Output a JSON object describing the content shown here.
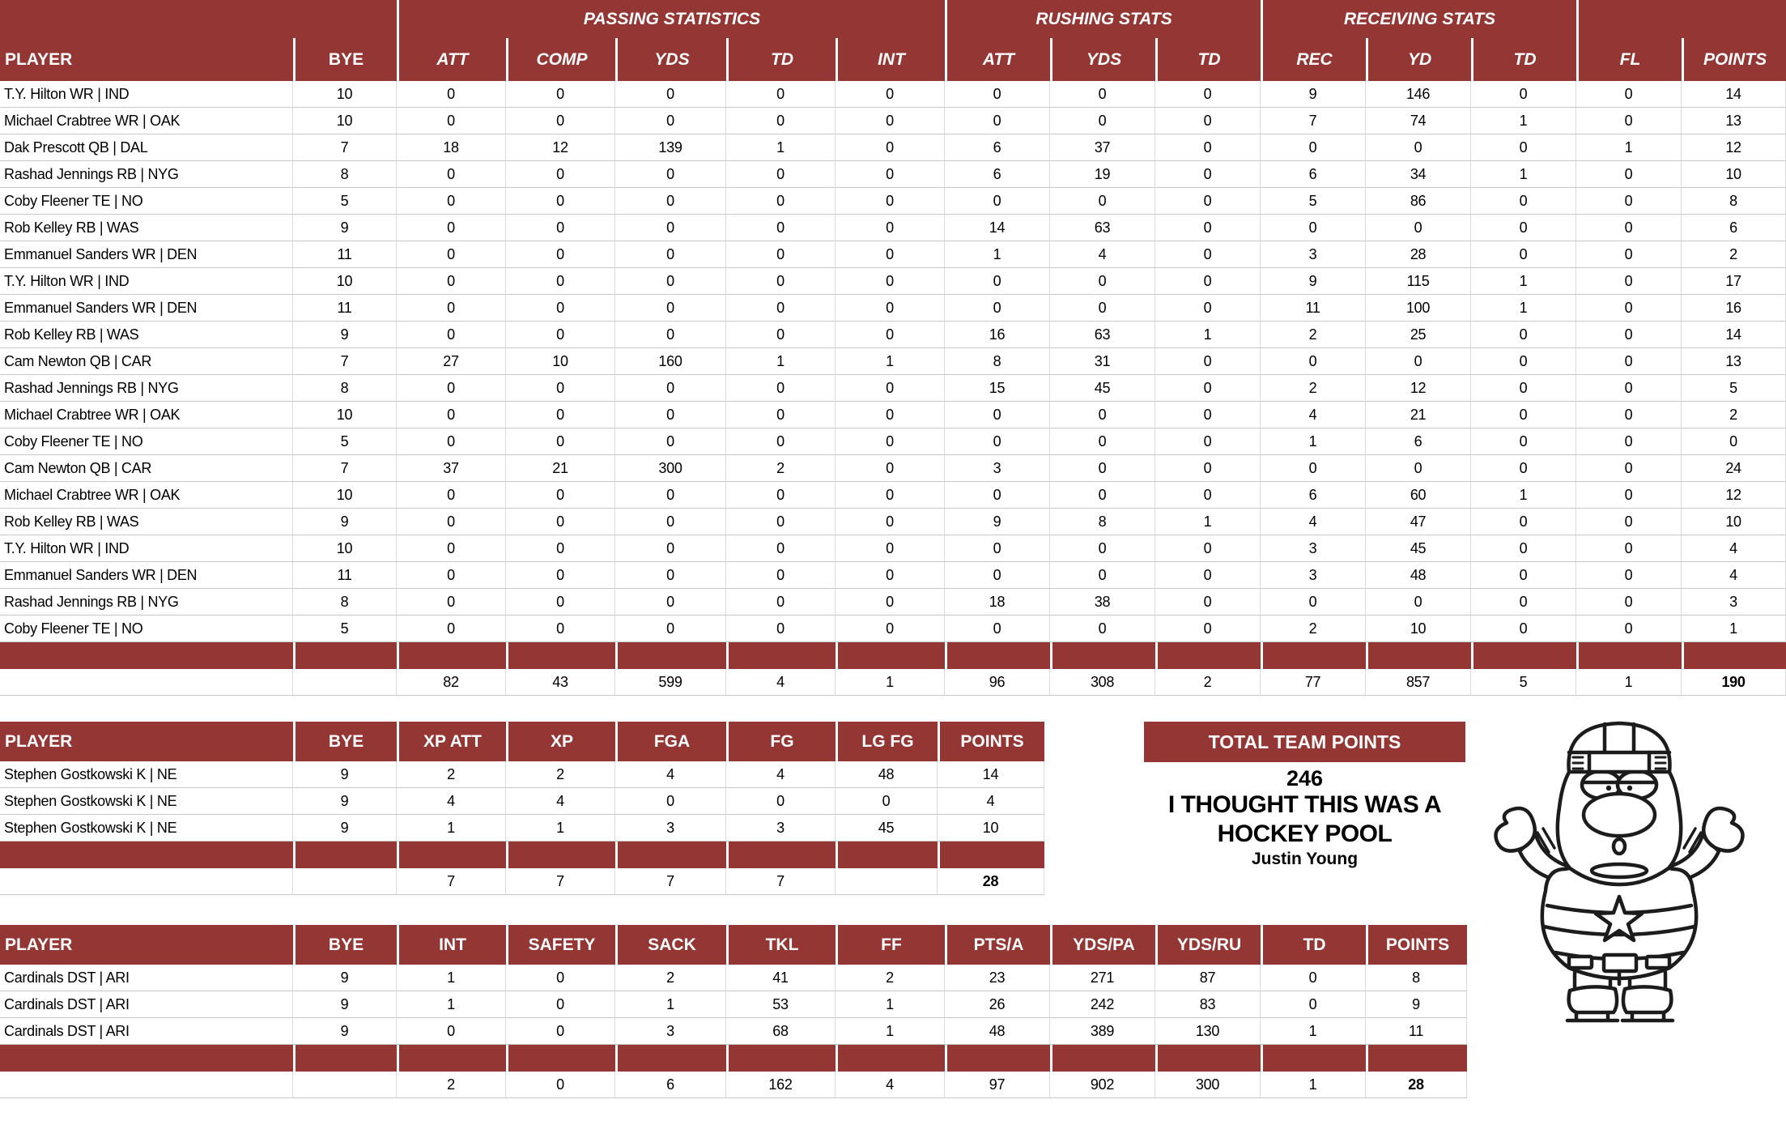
{
  "colors": {
    "maroon": "#943634",
    "grid_vertical": "#dadada",
    "grid_horizontal": "#c6c6c6",
    "header_text": "#ffffff",
    "body_text": "#000000"
  },
  "main": {
    "groups": [
      "PASSING STATISTICS",
      "RUSHING STATS",
      "RECEIVING STATS"
    ],
    "columns": [
      "PLAYER",
      "BYE",
      "ATT",
      "COMP",
      "YDS",
      "TD",
      "INT",
      "ATT",
      "YDS",
      "TD",
      "REC",
      "YD",
      "TD",
      "FL",
      "POINTS"
    ],
    "rows": [
      [
        "T.Y. Hilton WR | IND",
        "10",
        "0",
        "0",
        "0",
        "0",
        "0",
        "0",
        "0",
        "0",
        "9",
        "146",
        "0",
        "0",
        "14"
      ],
      [
        "Michael Crabtree WR | OAK",
        "10",
        "0",
        "0",
        "0",
        "0",
        "0",
        "0",
        "0",
        "0",
        "7",
        "74",
        "1",
        "0",
        "13"
      ],
      [
        "Dak Prescott QB | DAL",
        "7",
        "18",
        "12",
        "139",
        "1",
        "0",
        "6",
        "37",
        "0",
        "0",
        "0",
        "0",
        "1",
        "12"
      ],
      [
        "Rashad Jennings RB | NYG",
        "8",
        "0",
        "0",
        "0",
        "0",
        "0",
        "6",
        "19",
        "0",
        "6",
        "34",
        "1",
        "0",
        "10"
      ],
      [
        "Coby Fleener TE | NO",
        "5",
        "0",
        "0",
        "0",
        "0",
        "0",
        "0",
        "0",
        "0",
        "5",
        "86",
        "0",
        "0",
        "8"
      ],
      [
        "Rob Kelley RB | WAS",
        "9",
        "0",
        "0",
        "0",
        "0",
        "0",
        "14",
        "63",
        "0",
        "0",
        "0",
        "0",
        "0",
        "6"
      ],
      [
        "Emmanuel Sanders WR | DEN",
        "11",
        "0",
        "0",
        "0",
        "0",
        "0",
        "1",
        "4",
        "0",
        "3",
        "28",
        "0",
        "0",
        "2"
      ],
      [
        "T.Y. Hilton WR | IND",
        "10",
        "0",
        "0",
        "0",
        "0",
        "0",
        "0",
        "0",
        "0",
        "9",
        "115",
        "1",
        "0",
        "17"
      ],
      [
        "Emmanuel Sanders WR | DEN",
        "11",
        "0",
        "0",
        "0",
        "0",
        "0",
        "0",
        "0",
        "0",
        "11",
        "100",
        "1",
        "0",
        "16"
      ],
      [
        "Rob Kelley RB | WAS",
        "9",
        "0",
        "0",
        "0",
        "0",
        "0",
        "16",
        "63",
        "1",
        "2",
        "25",
        "0",
        "0",
        "14"
      ],
      [
        "Cam Newton QB | CAR",
        "7",
        "27",
        "10",
        "160",
        "1",
        "1",
        "8",
        "31",
        "0",
        "0",
        "0",
        "0",
        "0",
        "13"
      ],
      [
        "Rashad Jennings RB | NYG",
        "8",
        "0",
        "0",
        "0",
        "0",
        "0",
        "15",
        "45",
        "0",
        "2",
        "12",
        "0",
        "0",
        "5"
      ],
      [
        "Michael Crabtree WR | OAK",
        "10",
        "0",
        "0",
        "0",
        "0",
        "0",
        "0",
        "0",
        "0",
        "4",
        "21",
        "0",
        "0",
        "2"
      ],
      [
        "Coby Fleener TE | NO",
        "5",
        "0",
        "0",
        "0",
        "0",
        "0",
        "0",
        "0",
        "0",
        "1",
        "6",
        "0",
        "0",
        "0"
      ],
      [
        "Cam Newton QB | CAR",
        "7",
        "37",
        "21",
        "300",
        "2",
        "0",
        "3",
        "0",
        "0",
        "0",
        "0",
        "0",
        "0",
        "24"
      ],
      [
        "Michael Crabtree WR | OAK",
        "10",
        "0",
        "0",
        "0",
        "0",
        "0",
        "0",
        "0",
        "0",
        "6",
        "60",
        "1",
        "0",
        "12"
      ],
      [
        "Rob Kelley RB | WAS",
        "9",
        "0",
        "0",
        "0",
        "0",
        "0",
        "9",
        "8",
        "1",
        "4",
        "47",
        "0",
        "0",
        "10"
      ],
      [
        "T.Y. Hilton WR | IND",
        "10",
        "0",
        "0",
        "0",
        "0",
        "0",
        "0",
        "0",
        "0",
        "3",
        "45",
        "0",
        "0",
        "4"
      ],
      [
        "Emmanuel Sanders WR | DEN",
        "11",
        "0",
        "0",
        "0",
        "0",
        "0",
        "0",
        "0",
        "0",
        "3",
        "48",
        "0",
        "0",
        "4"
      ],
      [
        "Rashad Jennings RB | NYG",
        "8",
        "0",
        "0",
        "0",
        "0",
        "0",
        "18",
        "38",
        "0",
        "0",
        "0",
        "0",
        "0",
        "3"
      ],
      [
        "Coby Fleener TE | NO",
        "5",
        "0",
        "0",
        "0",
        "0",
        "0",
        "0",
        "0",
        "0",
        "2",
        "10",
        "0",
        "0",
        "1"
      ]
    ],
    "totals": [
      "",
      "",
      "82",
      "43",
      "599",
      "4",
      "1",
      "96",
      "308",
      "2",
      "77",
      "857",
      "5",
      "1",
      "190"
    ]
  },
  "kickers": {
    "columns": [
      "PLAYER",
      "BYE",
      "XP ATT",
      "XP",
      "FGA",
      "FG",
      "LG FG",
      "POINTS"
    ],
    "rows": [
      [
        "Stephen Gostkowski K | NE",
        "9",
        "2",
        "2",
        "4",
        "4",
        "48",
        "14"
      ],
      [
        "Stephen Gostkowski K | NE",
        "9",
        "4",
        "4",
        "0",
        "0",
        "0",
        "4"
      ],
      [
        "Stephen Gostkowski K | NE",
        "9",
        "1",
        "1",
        "3",
        "3",
        "45",
        "10"
      ]
    ],
    "totals": [
      "",
      "",
      "7",
      "7",
      "7",
      "7",
      "",
      "28"
    ]
  },
  "defense": {
    "columns": [
      "PLAYER",
      "BYE",
      "INT",
      "SAFETY",
      "SACK",
      "TKL",
      "FF",
      "PTS/A",
      "YDS/PA",
      "YDS/RU",
      "TD",
      "POINTS"
    ],
    "rows": [
      [
        "Cardinals DST | ARI",
        "9",
        "1",
        "0",
        "2",
        "41",
        "2",
        "23",
        "271",
        "87",
        "0",
        "8"
      ],
      [
        "Cardinals DST | ARI",
        "9",
        "1",
        "0",
        "1",
        "53",
        "1",
        "26",
        "242",
        "83",
        "0",
        "9"
      ],
      [
        "Cardinals DST | ARI",
        "9",
        "0",
        "0",
        "3",
        "68",
        "1",
        "48",
        "389",
        "130",
        "1",
        "11"
      ]
    ],
    "totals": [
      "",
      "",
      "2",
      "0",
      "6",
      "162",
      "4",
      "97",
      "902",
      "300",
      "1",
      "28"
    ]
  },
  "summary": {
    "title": "TOTAL TEAM POINTS",
    "total": "246",
    "message_line1": "I THOUGHT THIS WAS A",
    "message_line2": "HOCKEY POOL",
    "author": "Justin Young"
  },
  "mascot": {
    "description": "black-and-white cartoon hockey player shrugging"
  }
}
